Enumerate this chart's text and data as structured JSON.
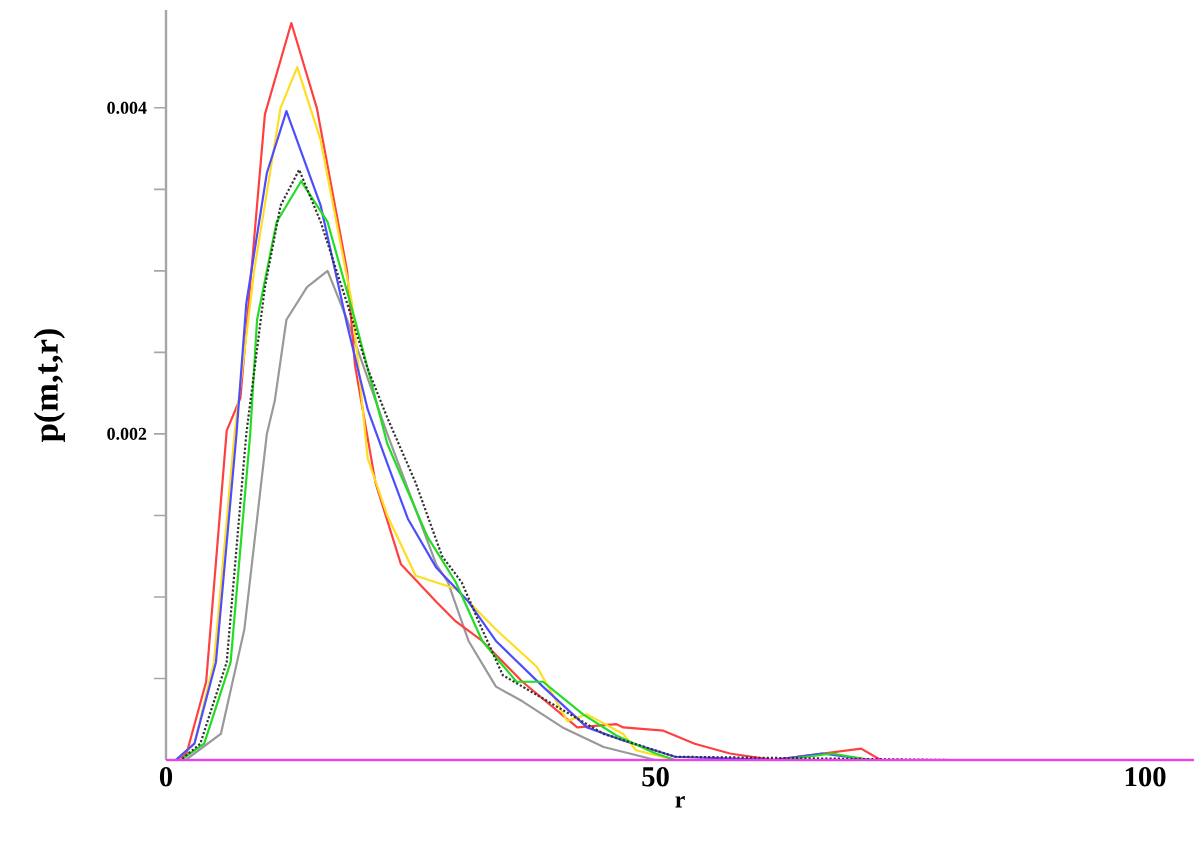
{
  "chart_data": {
    "type": "line",
    "xlabel": "r",
    "ylabel": "p(m,t,r)",
    "xlim": [
      0,
      105
    ],
    "ylim": [
      0,
      0.0046
    ],
    "xticks": [
      0,
      50,
      100
    ],
    "yticks": [
      {
        "value": 0.0005,
        "label": null
      },
      {
        "value": 0.001,
        "label": null
      },
      {
        "value": 0.0015,
        "label": null
      },
      0.002,
      {
        "value": 0.0025,
        "label": null
      },
      {
        "value": 0.003,
        "label": null
      },
      {
        "value": 0.0035,
        "label": null
      },
      0.004
    ],
    "grid": false,
    "marker": "none",
    "series": [
      {
        "color": "#999999",
        "x": [
          0,
          2,
          5.6,
          8,
          10.3,
          11.1,
          12.3,
          14.4,
          16.5,
          18.5,
          22.6,
          27.6,
          28.8,
          30.9,
          33.7,
          36.4,
          40.5,
          44.7,
          50,
          80
        ],
        "values": [
          0,
          0,
          0.00016,
          0.0008,
          0.002,
          0.0022,
          0.0027,
          0.0029,
          0.003,
          0.0027,
          0.002,
          0.0012,
          0.00109,
          0.00073,
          0.00045,
          0.00036,
          0.0002,
          8e-05,
          0,
          0
        ]
      },
      {
        "color": "#ff4040",
        "x": [
          0,
          1,
          2.1,
          4.1,
          6.2,
          7.6,
          10.1,
          12.8,
          15.4,
          18.5,
          19.3,
          21.4,
          24,
          27.6,
          29.6,
          32.3,
          36.4,
          42,
          46,
          46.7,
          50.8,
          54,
          57.6,
          62,
          71,
          73,
          80
        ],
        "values": [
          0,
          0,
          4e-05,
          0.00048,
          0.00202,
          0.00222,
          0.00396,
          0.00452,
          0.004,
          0.003,
          0.00242,
          0.0017,
          0.0012,
          0.00097,
          0.00085,
          0.00073,
          0.00048,
          0.0002,
          0.00022,
          0.0002,
          0.00018,
          0.0001,
          4e-05,
          0,
          7e-05,
          0,
          0
        ]
      },
      {
        "color": "#ffdd22",
        "x": [
          0,
          1,
          2.9,
          4.9,
          7,
          9,
          11.7,
          13.4,
          15.8,
          19,
          20.6,
          22.6,
          25.5,
          29.6,
          33.7,
          37.9,
          41,
          43,
          46.7,
          48,
          52,
          80
        ],
        "values": [
          0,
          0,
          0.0001,
          0.0006,
          0.002,
          0.003,
          0.004,
          0.00425,
          0.0038,
          0.0028,
          0.00185,
          0.0015,
          0.00113,
          0.00105,
          0.0008,
          0.00057,
          0.00024,
          0.00028,
          0.00016,
          6e-05,
          0,
          0
        ]
      },
      {
        "color": "#4d4dff",
        "x": [
          0,
          1,
          2.9,
          5.1,
          7.2,
          8.2,
          10.3,
          12.3,
          15.8,
          18.5,
          20.6,
          22.6,
          24.7,
          27.6,
          30.9,
          33.7,
          38.5,
          43,
          46.7,
          52,
          62,
          67,
          72,
          80
        ],
        "values": [
          0,
          0,
          0.0001,
          0.0006,
          0.002,
          0.0028,
          0.0036,
          0.00398,
          0.0034,
          0.00267,
          0.00215,
          0.00182,
          0.00148,
          0.00118,
          0.00097,
          0.00073,
          0.00045,
          0.0002,
          0.00012,
          2e-05,
          0,
          4e-05,
          0,
          0
        ]
      },
      {
        "color": "#22dd22",
        "x": [
          0,
          1.5,
          3.9,
          6.6,
          8.6,
          9.3,
          11.3,
          13.8,
          16.5,
          19.3,
          22.6,
          26.7,
          29.6,
          32.3,
          35.8,
          38.5,
          42.6,
          46,
          50,
          52,
          63,
          68,
          72,
          80
        ],
        "values": [
          0,
          0,
          0.0001,
          0.0006,
          0.002,
          0.0027,
          0.0033,
          0.00355,
          0.0033,
          0.0027,
          0.00194,
          0.00137,
          0.00109,
          0.00073,
          0.00048,
          0.00048,
          0.00028,
          0.00015,
          4e-05,
          0,
          0,
          4e-05,
          0,
          0
        ]
      },
      {
        "color": "#333333",
        "line_style": "dotted",
        "x": [
          0,
          1.5,
          3.5,
          6.2,
          8.2,
          10.1,
          11.7,
          13.6,
          15.8,
          18.5,
          20.6,
          22.6,
          25.5,
          28.2,
          30.2,
          32.3,
          34.4,
          39,
          44.7,
          52,
          80
        ],
        "values": [
          0,
          0,
          0.0001,
          0.0006,
          0.002,
          0.0029,
          0.0034,
          0.00362,
          0.0033,
          0.0028,
          0.0024,
          0.0021,
          0.0017,
          0.00125,
          0.00109,
          0.0008,
          0.00052,
          0.00036,
          0.00016,
          2e-05,
          0
        ]
      },
      {
        "color": "#ff33ff",
        "x": [
          0,
          105
        ],
        "values": [
          0,
          0
        ]
      }
    ]
  }
}
